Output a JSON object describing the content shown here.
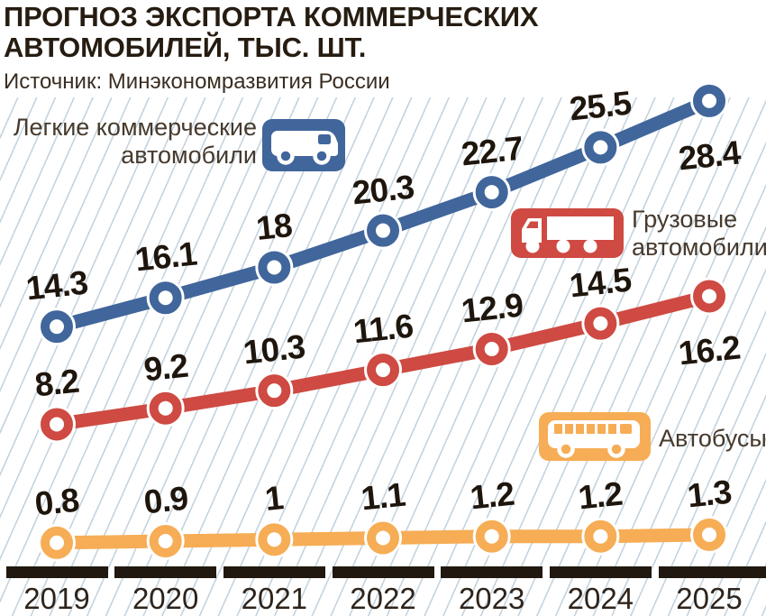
{
  "title": "ПРОГНОЗ ЭКСПОРТА КОММЕРЧЕСКИХ АВТОМОБИЛЕЙ, ТЫС. ШТ.",
  "source": "Источник: Минэкономразвития России",
  "colors": {
    "light_commercial": "#40669b",
    "trucks": "#ce4a42",
    "buses": "#f6ad55",
    "axis_bar": "#211810",
    "value_text": "#1e150c",
    "hatch_line": "#c7d4dd"
  },
  "chart_data": {
    "type": "line",
    "title": "ПРОГНОЗ ЭКСПОРТА КОММЕРЧЕСКИХ АВТОМОБИЛЕЙ, ТЫС. ШТ.",
    "source": "Источник: Минэкономразвития России",
    "x": [
      "2019",
      "2020",
      "2021",
      "2022",
      "2023",
      "2024",
      "2025"
    ],
    "ylim": [
      0,
      30
    ],
    "grid": false,
    "background": "diagonal-hatch",
    "legend_position": "inline",
    "series": [
      {
        "name": "Легкие коммерческие автомобили",
        "legend_lines": [
          "Легкие коммерческие",
          "автомобили"
        ],
        "icon": "van-icon",
        "color": "#40669b",
        "values": [
          14.3,
          16.1,
          18,
          20.3,
          22.7,
          25.5,
          28.4
        ],
        "last_label_below": true
      },
      {
        "name": "Грузовые автомобили",
        "legend_lines": [
          "Грузовые",
          "автомобили"
        ],
        "icon": "truck-icon",
        "color": "#ce4a42",
        "values": [
          8.2,
          9.2,
          10.3,
          11.6,
          12.9,
          14.5,
          16.2
        ],
        "last_label_below": true
      },
      {
        "name": "Автобусы",
        "legend_lines": [
          "Автобусы"
        ],
        "icon": "bus-icon",
        "color": "#f6ad55",
        "values": [
          0.8,
          0.9,
          1,
          1.1,
          1.2,
          1.2,
          1.3
        ],
        "last_label_below": false
      }
    ]
  }
}
